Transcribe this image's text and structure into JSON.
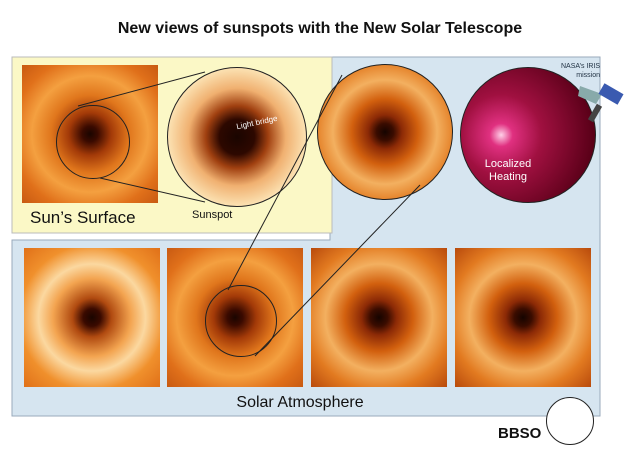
{
  "title": "New views of sunspots with the New Solar Telescope",
  "labels": {
    "surface": "Sun’s Surface",
    "sunspot": "Sunspot",
    "light_bridge": "Light bridge",
    "localized_heating_1": "Localized",
    "localized_heating_2": "Heating",
    "iris_1": "NASA’s IRIS",
    "iris_2": "mission",
    "atmosphere": "Solar Atmosphere",
    "logo": "BBSO"
  },
  "colors": {
    "surface_panel": "#fbf8c6",
    "atmosphere_panel": "#d6e5f0"
  }
}
